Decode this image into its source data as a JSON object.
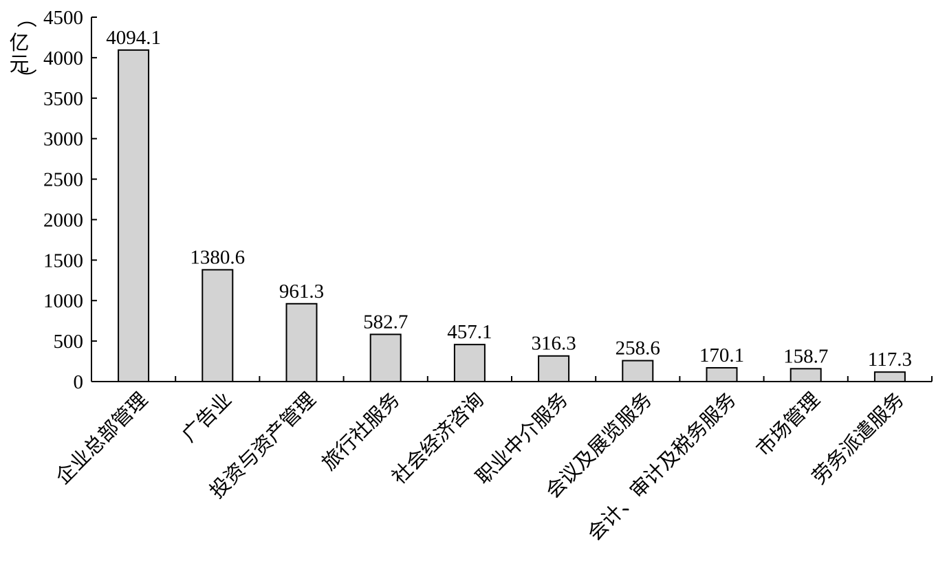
{
  "chart_data": {
    "type": "bar",
    "ylabel": "（亿元）",
    "ylim": [
      0,
      4500
    ],
    "ytick_step": 500,
    "grid": false,
    "bar_color": "#d3d3d3",
    "bar_edge_color": "#000000",
    "categories": [
      "企业总部管理",
      "广告业",
      "投资与资产管理",
      "旅行社服务",
      "社会经济咨询",
      "职业中介服务",
      "会议及展览服务",
      "会计、审计及税务服务",
      "市场管理",
      "劳务派遣服务"
    ],
    "values": [
      4094.1,
      1380.6,
      961.3,
      582.7,
      457.1,
      316.3,
      258.6,
      170.1,
      158.7,
      117.3
    ],
    "data_labels": [
      "4094.1",
      "1380.6",
      "961.3",
      "582.7",
      "457.1",
      "316.3",
      "258.6",
      "170.1",
      "158.7",
      "117.3"
    ]
  }
}
